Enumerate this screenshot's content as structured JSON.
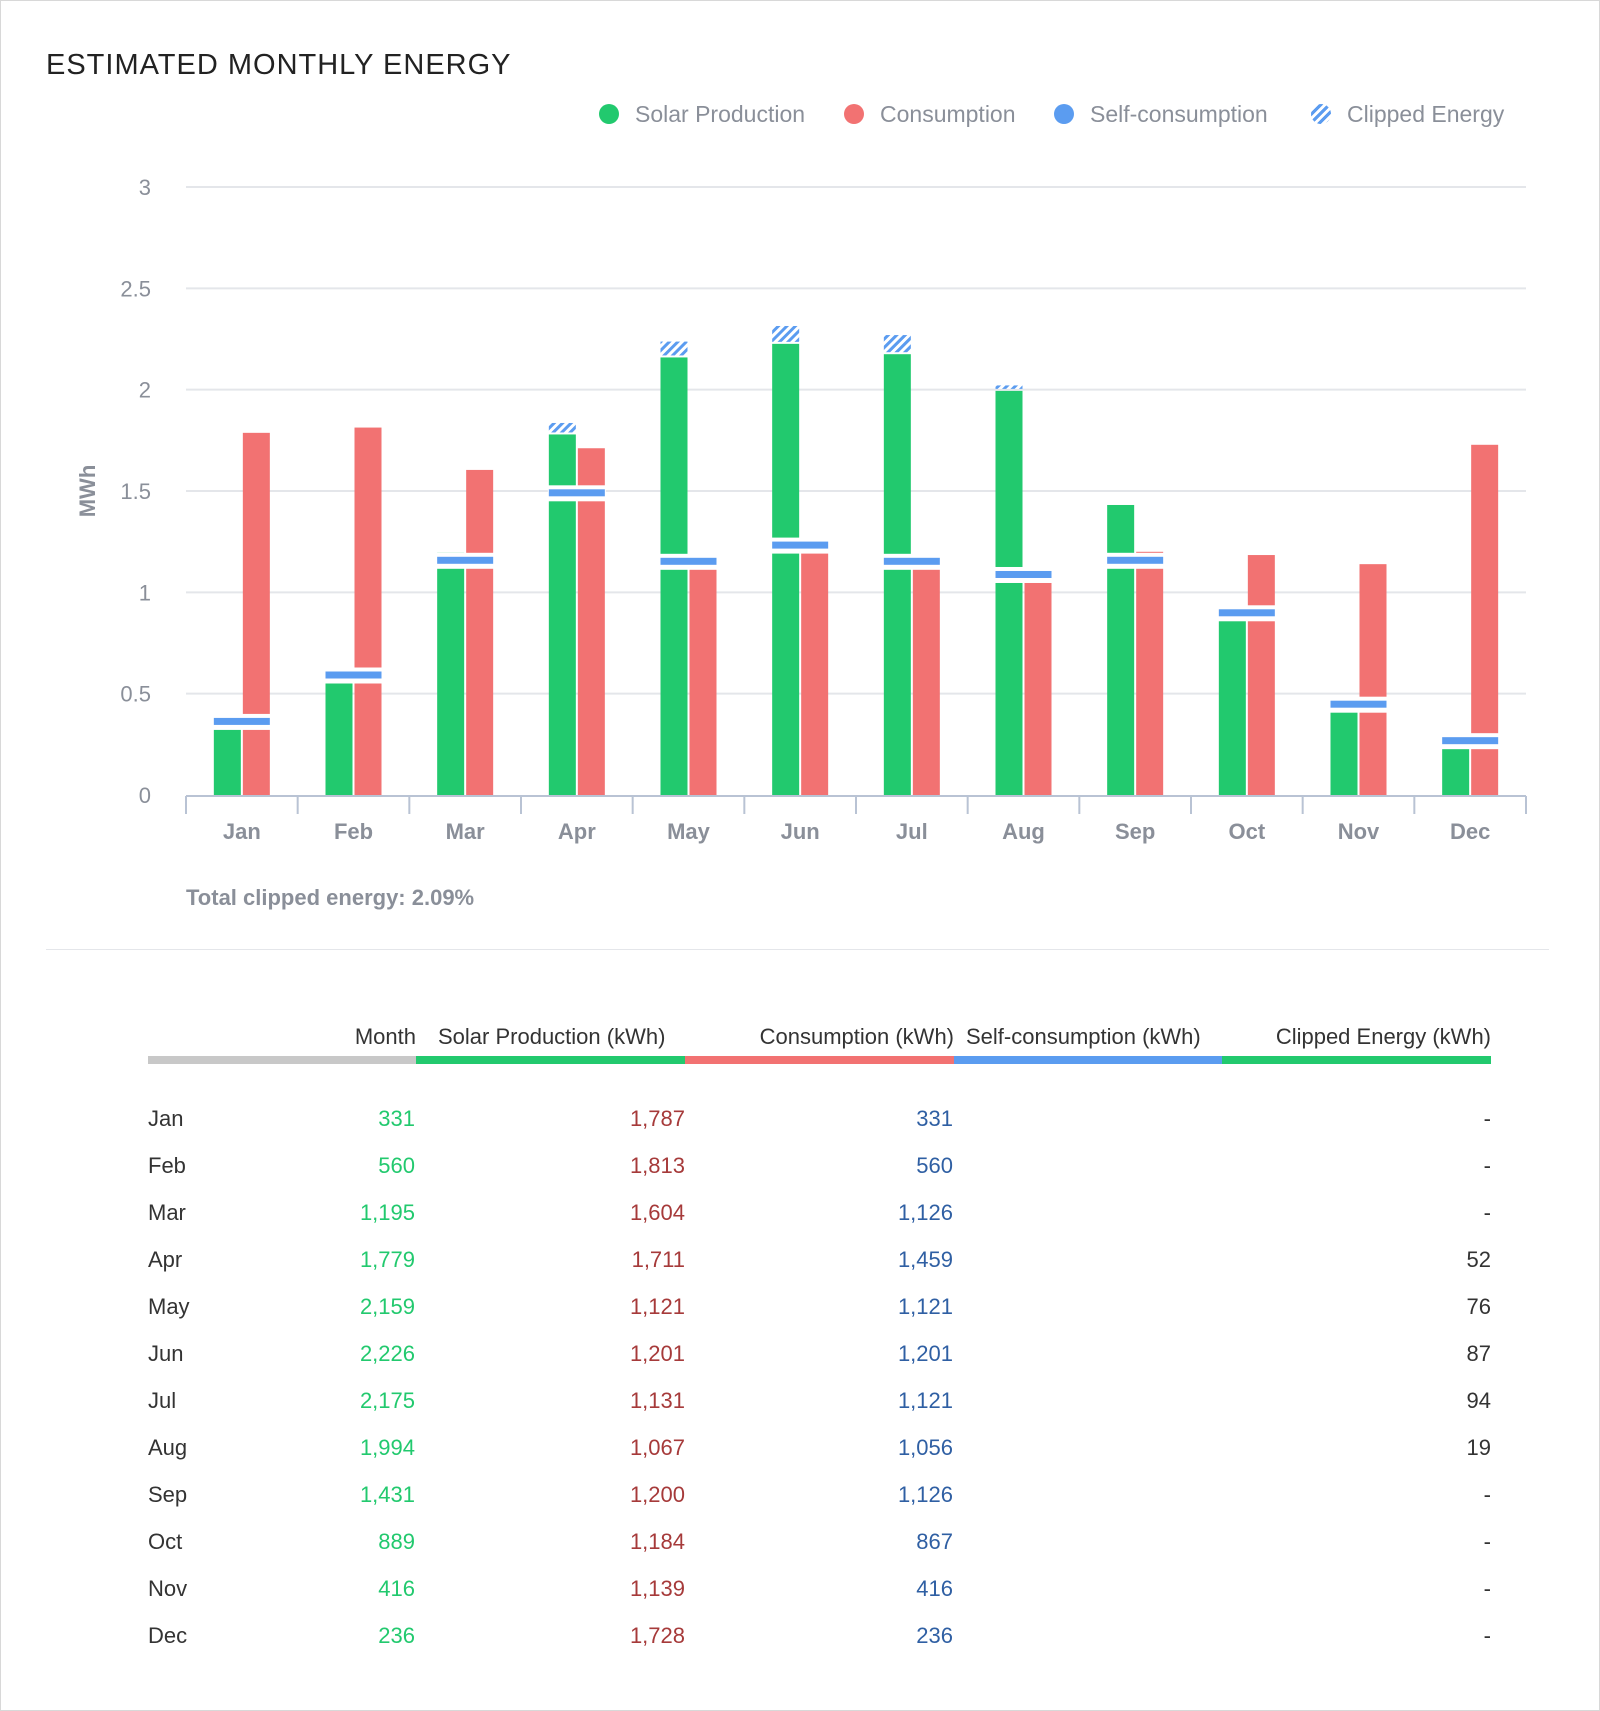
{
  "title": "ESTIMATED MONTHLY ENERGY",
  "legend": [
    {
      "label": "Solar Production",
      "color": "#22c96e",
      "icon": "circle"
    },
    {
      "label": "Consumption",
      "color": "#f27272",
      "icon": "circle"
    },
    {
      "label": "Self-consumption",
      "color": "#5b9cf0",
      "icon": "circle"
    },
    {
      "label": "Clipped Energy",
      "color": "#5b9cf0",
      "icon": "hatched-circle"
    }
  ],
  "total_clipped": "Total clipped energy: 2.09%",
  "chart_data": {
    "type": "bar",
    "ylabel": "MWh",
    "ylim": [
      0,
      3
    ],
    "yticks": [
      "0",
      "0.5",
      "1",
      "1.5",
      "2",
      "2.5",
      "3"
    ],
    "grid": true,
    "legend_position": "top-right",
    "categories": [
      "Jan",
      "Feb",
      "Mar",
      "Apr",
      "May",
      "Jun",
      "Jul",
      "Aug",
      "Sep",
      "Oct",
      "Nov",
      "Dec"
    ],
    "series": [
      {
        "name": "Solar Production",
        "values": [
          0.331,
          0.56,
          1.195,
          1.779,
          2.159,
          2.226,
          2.175,
          1.994,
          1.431,
          0.889,
          0.416,
          0.236
        ]
      },
      {
        "name": "Consumption",
        "values": [
          1.787,
          1.813,
          1.604,
          1.711,
          1.121,
          1.201,
          1.131,
          1.067,
          1.2,
          1.184,
          1.139,
          1.728
        ]
      },
      {
        "name": "Self-consumption",
        "values": [
          0.331,
          0.56,
          1.126,
          1.459,
          1.121,
          1.201,
          1.121,
          1.056,
          1.126,
          0.867,
          0.416,
          0.236
        ]
      },
      {
        "name": "Clipped Energy",
        "values": [
          0,
          0,
          0,
          0.052,
          0.076,
          0.087,
          0.094,
          0.019,
          0,
          0,
          0,
          0
        ]
      }
    ],
    "colors": {
      "solar": "#22c96e",
      "consumption": "#f27272",
      "self": "#5b9cf0",
      "grid": "#e4e6ea",
      "axis": "#b9c3d4"
    }
  },
  "table": {
    "headers": {
      "month": "Month",
      "solar": "Solar Production (kWh)",
      "consumption": "Consumption (kWh)",
      "self": "Self-consumption (kWh)",
      "clipped": "Clipped Energy (kWh)"
    },
    "rows": [
      {
        "month": "Jan",
        "solar": "331",
        "consumption": "1,787",
        "self": "331",
        "clipped": "-"
      },
      {
        "month": "Feb",
        "solar": "560",
        "consumption": "1,813",
        "self": "560",
        "clipped": "-"
      },
      {
        "month": "Mar",
        "solar": "1,195",
        "consumption": "1,604",
        "self": "1,126",
        "clipped": "-"
      },
      {
        "month": "Apr",
        "solar": "1,779",
        "consumption": "1,711",
        "self": "1,459",
        "clipped": "52"
      },
      {
        "month": "May",
        "solar": "2,159",
        "consumption": "1,121",
        "self": "1,121",
        "clipped": "76"
      },
      {
        "month": "Jun",
        "solar": "2,226",
        "consumption": "1,201",
        "self": "1,201",
        "clipped": "87"
      },
      {
        "month": "Jul",
        "solar": "2,175",
        "consumption": "1,131",
        "self": "1,121",
        "clipped": "94"
      },
      {
        "month": "Aug",
        "solar": "1,994",
        "consumption": "1,067",
        "self": "1,056",
        "clipped": "19"
      },
      {
        "month": "Sep",
        "solar": "1,431",
        "consumption": "1,200",
        "self": "1,126",
        "clipped": "-"
      },
      {
        "month": "Oct",
        "solar": "889",
        "consumption": "1,184",
        "self": "867",
        "clipped": "-"
      },
      {
        "month": "Nov",
        "solar": "416",
        "consumption": "1,139",
        "self": "416",
        "clipped": "-"
      },
      {
        "month": "Dec",
        "solar": "236",
        "consumption": "1,728",
        "self": "236",
        "clipped": "-"
      }
    ]
  }
}
